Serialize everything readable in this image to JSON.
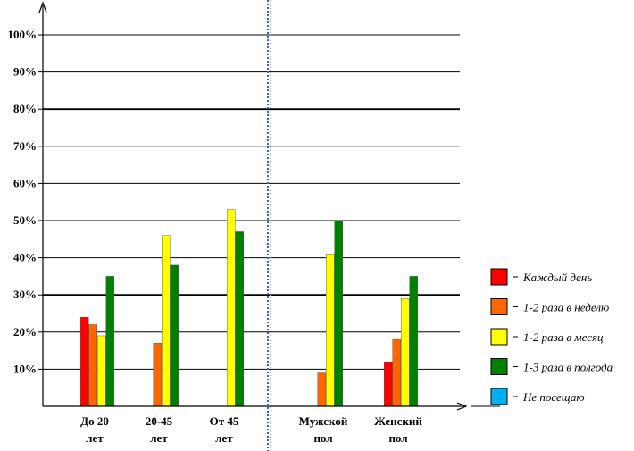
{
  "chart_data": {
    "type": "bar",
    "categories": [
      [
        "До 20",
        "лет"
      ],
      [
        "20-45",
        "лет"
      ],
      [
        "От 45",
        "лет"
      ],
      [
        "Мужской",
        "пол"
      ],
      [
        "Женский",
        "пол"
      ]
    ],
    "series": [
      {
        "name": "Каждый день",
        "color": "#ff0000",
        "values": [
          24,
          0,
          0,
          0,
          12
        ]
      },
      {
        "name": "1-2 раза в неделю",
        "color": "#ff6600",
        "values": [
          22,
          17,
          0,
          9,
          18
        ]
      },
      {
        "name": "1-2 раза в месяц",
        "color": "#ffff00",
        "values": [
          19,
          46,
          53,
          41,
          29
        ]
      },
      {
        "name": "1-3 раза в полгода",
        "color": "#008000",
        "values": [
          35,
          38,
          47,
          50,
          35
        ]
      },
      {
        "name": "Не посещаю",
        "color": "#00b0f0",
        "values": [
          0,
          0,
          0,
          0,
          0
        ]
      }
    ],
    "ylim": [
      0,
      100
    ],
    "yticks": [
      "10%",
      "20%",
      "30%",
      "40%",
      "50%",
      "60%",
      "70%",
      "80%",
      "90%",
      "100%"
    ],
    "grid": true,
    "legend": "right",
    "divider": "dotted blue vertical line between age groups and gender groups"
  }
}
